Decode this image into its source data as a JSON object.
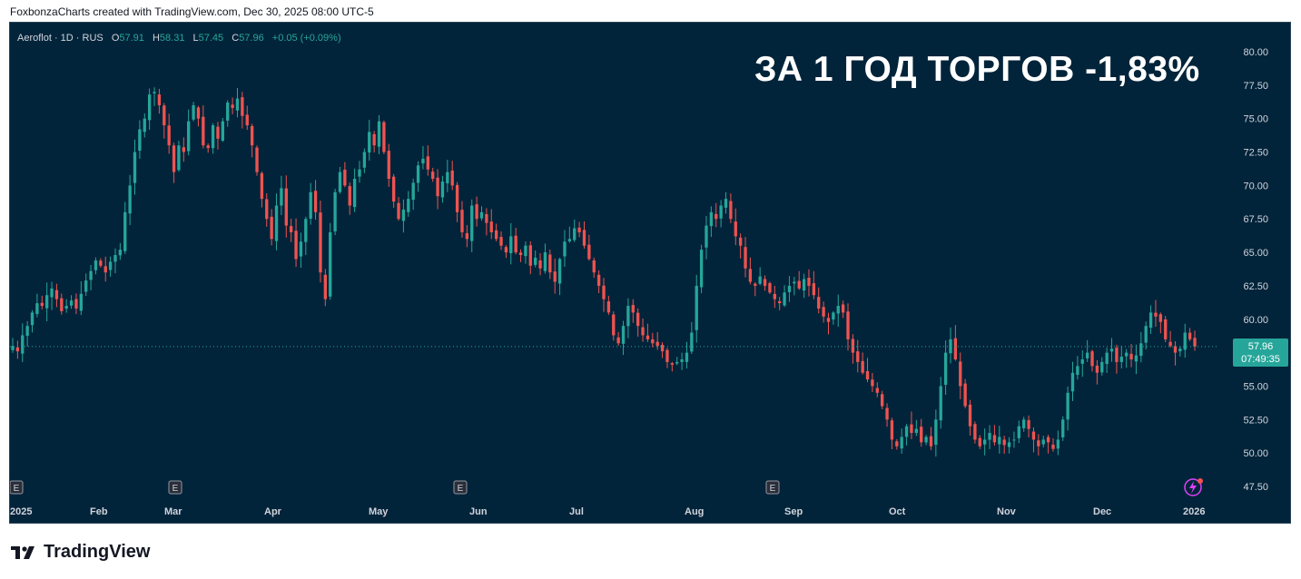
{
  "header": {
    "credit": "FoxbonzaCharts created with TradingView.com, Dec 30, 2025 08:00 UTC-5"
  },
  "legend": {
    "symbol": "Aeroflot · 1D · RUS",
    "open_label": "O",
    "open": "57.91",
    "high_label": "H",
    "high": "58.31",
    "low_label": "L",
    "low": "57.45",
    "close_label": "C",
    "close": "57.96",
    "change": "+0.05 (+0.09%)"
  },
  "headline": "ЗА 1 ГОД ТОРГОВ -1,83%",
  "price_label": {
    "price": "57.96",
    "countdown": "07:49:35"
  },
  "footer": {
    "brand": "TradingView"
  },
  "colors": {
    "background": "#02243a",
    "up": "#26a69a",
    "down": "#ef5350",
    "text": "#d1d4dc"
  },
  "icons": [
    "earnings-event-icon",
    "lightning-icon",
    "tradingview-logo-icon"
  ],
  "chart_data": {
    "type": "candlestick",
    "title": "",
    "xlabel": "",
    "ylabel": "",
    "ylim": [
      46.5,
      81.0
    ],
    "yticks": [
      "80.00",
      "77.50",
      "75.00",
      "72.50",
      "70.00",
      "67.50",
      "65.00",
      "62.50",
      "60.00",
      "57.50",
      "55.00",
      "52.50",
      "50.00",
      "47.50"
    ],
    "x_labels": [
      "2025",
      "Feb",
      "Mar",
      "Apr",
      "May",
      "Jun",
      "Jul",
      "Aug",
      "Sep",
      "Oct",
      "Nov",
      "Dec",
      "2026"
    ],
    "earnings_markers": [
      "Jan",
      "Mar",
      "Jun",
      "Sep"
    ],
    "earnings_marker_label": "E",
    "last_price": 57.96,
    "grid": false,
    "closes": [
      58.0,
      57.6,
      58.8,
      59.5,
      60.5,
      61.2,
      61.0,
      61.8,
      62.3,
      61.5,
      60.6,
      61.0,
      61.4,
      60.8,
      61.9,
      62.9,
      63.6,
      64.4,
      64.0,
      63.5,
      64.3,
      64.8,
      65.2,
      68.0,
      70.0,
      72.5,
      74.2,
      75.0,
      76.8,
      77.0,
      76.0,
      74.5,
      73.0,
      71.0,
      73.0,
      72.5,
      74.8,
      76.0,
      75.0,
      73.0,
      72.8,
      74.5,
      73.5,
      74.8,
      76.2,
      75.8,
      76.5,
      75.2,
      74.5,
      73.0,
      71.0,
      69.0,
      67.5,
      66.0,
      68.5,
      69.8,
      67.0,
      66.5,
      64.5,
      65.8,
      67.5,
      69.5,
      68.0,
      63.5,
      61.5,
      66.5,
      69.5,
      71.0,
      70.0,
      68.5,
      70.5,
      71.2,
      72.5,
      74.0,
      73.0,
      74.8,
      72.5,
      70.5,
      68.8,
      67.5,
      68.2,
      69.0,
      70.2,
      71.5,
      72.0,
      71.2,
      70.5,
      69.2,
      70.3,
      71.0,
      70.0,
      68.0,
      66.5,
      66.0,
      68.5,
      67.5,
      68.0,
      67.2,
      66.5,
      66.0,
      65.5,
      65.0,
      66.2,
      65.0,
      64.8,
      65.5,
      64.0,
      64.6,
      63.8,
      65.0,
      63.5,
      62.8,
      64.5,
      65.8,
      66.0,
      66.8,
      66.5,
      65.5,
      64.5,
      63.5,
      62.5,
      61.5,
      60.5,
      58.8,
      58.2,
      59.5,
      61.0,
      60.5,
      59.5,
      58.8,
      58.5,
      58.2,
      58.0,
      57.6,
      56.8,
      56.6,
      56.8,
      57.0,
      57.5,
      59.0,
      62.5,
      65.2,
      67.0,
      68.0,
      67.5,
      68.5,
      69.0,
      67.5,
      66.2,
      65.5,
      63.8,
      62.8,
      62.5,
      63.2,
      62.5,
      62.0,
      61.5,
      61.2,
      62.0,
      62.5,
      62.8,
      62.3,
      63.0,
      62.5,
      61.8,
      60.8,
      60.2,
      59.8,
      60.5,
      61.0,
      60.5,
      58.5,
      57.5,
      56.8,
      56.0,
      55.5,
      55.0,
      54.5,
      53.5,
      52.5,
      51.0,
      50.5,
      51.2,
      52.0,
      51.5,
      51.8,
      50.8,
      51.2,
      50.5,
      52.5,
      55.0,
      57.5,
      58.5,
      57.0,
      55.0,
      53.5,
      52.0,
      51.0,
      50.5,
      51.0,
      51.5,
      50.8,
      51.2,
      50.6,
      50.8,
      51.0,
      52.0,
      52.5,
      51.8,
      51.0,
      50.5,
      51.0,
      50.8,
      50.3,
      51.0,
      52.5,
      54.5,
      56.0,
      56.5,
      57.0,
      57.5,
      56.5,
      56.0,
      56.8,
      57.5,
      57.8,
      56.8,
      57.2,
      57.5,
      57.0,
      57.3,
      58.2,
      59.5,
      60.5,
      60.2,
      59.8,
      58.5,
      58.0,
      57.5,
      57.8,
      59.0,
      58.5,
      57.96
    ]
  }
}
